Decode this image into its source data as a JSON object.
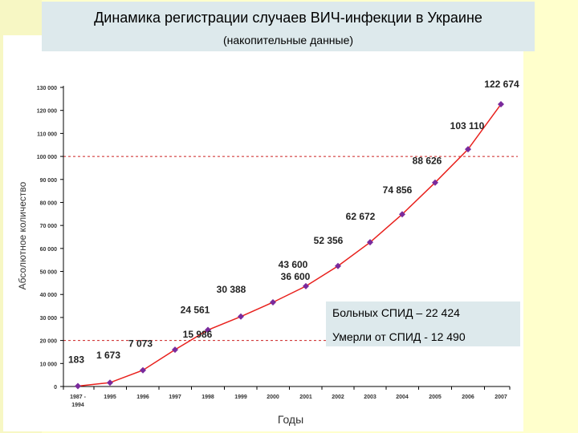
{
  "title": "Динамика регистрации случаев ВИЧ-инфекции в Украине",
  "subtitle": "(накопительные данные)",
  "legend_notes": [
    "Больных СПИД – 22 424",
    "Умерли от СПИД - 12 490"
  ],
  "colors": {
    "line": "#e8201c",
    "marker": "#7a2a9c",
    "reference_line": "#cc2020",
    "title_bg": "#dde9ec",
    "page_bg": "#ffffcc"
  },
  "chart_data": {
    "type": "line",
    "categories": [
      "1987 - 1994",
      "1995",
      "1996",
      "1997",
      "1998",
      "1999",
      "2000",
      "2001",
      "2002",
      "2003",
      "2004",
      "2005",
      "2006",
      "2007"
    ],
    "values": [
      183,
      1673,
      7073,
      15986,
      24561,
      30388,
      36600,
      43600,
      52356,
      62672,
      74856,
      88626,
      103110,
      122674
    ],
    "data_labels": [
      "183",
      "1 673",
      "7 073",
      "15 986",
      "24 561",
      "30 388",
      "36 600",
      "43 600",
      "52 356",
      "62 672",
      "74 856",
      "88 626",
      "103 110",
      "122 674"
    ],
    "y_ticks": [
      0,
      10000,
      20000,
      30000,
      40000,
      50000,
      60000,
      70000,
      80000,
      90000,
      100000,
      110000,
      120000,
      130000
    ],
    "y_tick_labels": [
      "0",
      "10 000",
      "20 000",
      "30 000",
      "40 000",
      "50 000",
      "60 000",
      "70 000",
      "80 000",
      "90 000",
      "100 000",
      "110 000",
      "120 000",
      "130 000"
    ],
    "ylim": [
      0,
      130000
    ],
    "reference_lines": [
      20000,
      100000
    ],
    "xlabel": "Годы",
    "ylabel": "Абсолютное количество",
    "grid": false
  }
}
